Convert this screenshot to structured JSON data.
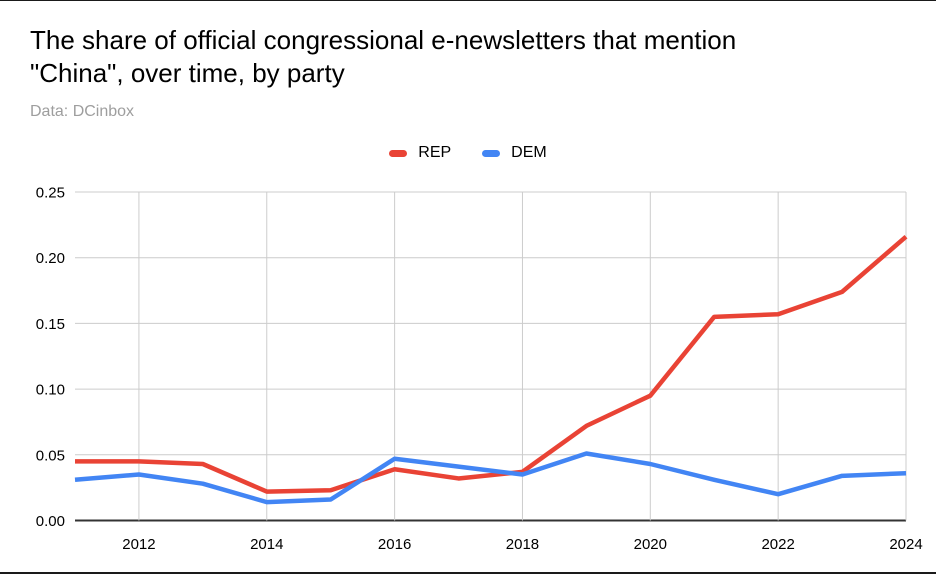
{
  "title": {
    "line1": "The share of official congressional e-newsletters that mention",
    "line2": "\"China\", over time, by party"
  },
  "subtitle": "Data: DCinbox",
  "legend": [
    {
      "label": "REP",
      "color": "#E94335"
    },
    {
      "label": "DEM",
      "color": "#4285F4"
    }
  ],
  "colors": {
    "rep_line": "#E94335",
    "dem_line": "#4285F4",
    "gridline": "#cccccc",
    "zero_axis": "#333333",
    "tick_label": "#000000",
    "subtitle_text": "#9e9e9e"
  },
  "chart_data": {
    "type": "line",
    "title": "The share of official congressional e-newsletters that mention \"China\", over time, by party",
    "subtitle": "Data: DCinbox",
    "x": [
      2011,
      2012,
      2013,
      2014,
      2015,
      2016,
      2017,
      2018,
      2019,
      2020,
      2021,
      2022,
      2023,
      2024
    ],
    "series": [
      {
        "name": "REP",
        "color": "#E94335",
        "values": [
          0.045,
          0.045,
          0.043,
          0.022,
          0.023,
          0.039,
          0.032,
          0.037,
          0.072,
          0.095,
          0.155,
          0.157,
          0.174,
          0.216
        ]
      },
      {
        "name": "DEM",
        "color": "#4285F4",
        "values": [
          0.031,
          0.035,
          0.028,
          0.014,
          0.016,
          0.047,
          0.041,
          0.035,
          0.051,
          0.043,
          0.031,
          0.02,
          0.034,
          0.036
        ]
      }
    ],
    "xlabel": "",
    "ylabel": "",
    "ylim": [
      0,
      0.25
    ],
    "yticks": [
      0,
      0.05,
      0.1,
      0.15,
      0.2,
      0.25
    ],
    "ytick_labels": [
      "0.00",
      "0.05",
      "0.10",
      "0.15",
      "0.20",
      "0.25"
    ],
    "xticks": [
      2012,
      2014,
      2016,
      2018,
      2020,
      2022,
      2024
    ],
    "xtick_labels": [
      "2012",
      "2014",
      "2016",
      "2018",
      "2020",
      "2022",
      "2024"
    ],
    "grid": true,
    "legend_position": "top-center",
    "line_width": 4.5
  }
}
